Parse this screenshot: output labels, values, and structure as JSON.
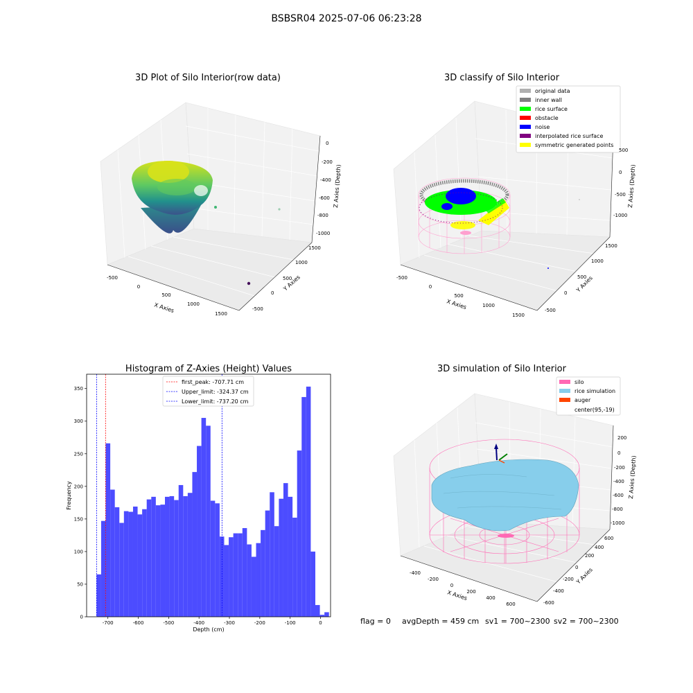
{
  "figure": {
    "title": "BSBSR04 2025-07-06 06:23:28"
  },
  "panels": {
    "raw": {
      "title": "3D Plot of Silo Interior(row data)",
      "xlabel": "X Axies",
      "ylabel": "Y Axies",
      "zlabel": "Z Axies (Depth)",
      "xticks": [
        "-500",
        "0",
        "500",
        "1000",
        "1500"
      ],
      "yticks": [
        "-500",
        "0",
        "500",
        "1000",
        "1500"
      ],
      "zticks": [
        "0",
        "-200",
        "-400",
        "-600",
        "-800",
        "-1000"
      ]
    },
    "classify": {
      "title": "3D classify of Silo Interior",
      "xlabel": "X Axies",
      "ylabel": "Y Axies",
      "zlabel": "Z Axies (Depth)",
      "xticks": [
        "-500",
        "0",
        "500",
        "1000",
        "1500"
      ],
      "yticks": [
        "-500",
        "0",
        "500",
        "1000",
        "1500"
      ],
      "zticks": [
        "500",
        "0",
        "-500",
        "-1000"
      ],
      "legend": [
        {
          "label": "original data",
          "color": "#b0b0b0"
        },
        {
          "label": "inner wall",
          "color": "#808080"
        },
        {
          "label": "rice surface",
          "color": "#00ff00"
        },
        {
          "label": "obstacle",
          "color": "#ff0000"
        },
        {
          "label": "noise",
          "color": "#0000ff"
        },
        {
          "label": "interpolated rice surface",
          "color": "#800080"
        },
        {
          "label": "symmetric generated points",
          "color": "#ffff00"
        }
      ]
    },
    "simulation": {
      "title": "3D simulation of Silo Interior",
      "xlabel": "X Axies",
      "ylabel": "Y Axies",
      "zlabel": "Z Axies (Depth)",
      "xticks": [
        "-400",
        "-200",
        "0",
        "200",
        "400",
        "600"
      ],
      "yticks": [
        "-600",
        "-400",
        "-200",
        "0",
        "200",
        "400",
        "600"
      ],
      "zticks": [
        "200",
        "0",
        "-200",
        "-400",
        "-600",
        "-800",
        "-1000"
      ],
      "legend": [
        {
          "label": "silo",
          "color": "#ff69b4"
        },
        {
          "label": "rice simulation",
          "color": "#87ceeb"
        },
        {
          "label": "auger",
          "color": "#ff4500"
        },
        {
          "label": "center(95,-19)",
          "color": ""
        }
      ],
      "status": {
        "flag": "flag = 0",
        "avg_depth": "avgDepth = 459 cm",
        "sv1": "sv1 = 700~2300",
        "sv2": "sv2 = 700~2300"
      }
    }
  },
  "chart_data": {
    "type": "bar",
    "title": "Histogram of Z-Axies (Height) Values",
    "xlabel": "Depth (cm)",
    "ylabel": "Frequency",
    "bar_color": "#4c4cff",
    "bin_start": -737.2,
    "bin_width": 15.0,
    "values": [
      65,
      147,
      266,
      195,
      168,
      144,
      162,
      161,
      169,
      157,
      165,
      180,
      184,
      171,
      172,
      184,
      185,
      179,
      202,
      185,
      190,
      222,
      262,
      305,
      293,
      178,
      174,
      123,
      110,
      122,
      128,
      128,
      136,
      111,
      92,
      113,
      133,
      163,
      191,
      139,
      181,
      205,
      184,
      152,
      255,
      337,
      353,
      100,
      18,
      3,
      7
    ],
    "xlim": [
      -770,
      33
    ],
    "ylim": [
      0,
      372
    ],
    "xticks": [
      -700,
      -600,
      -500,
      -400,
      -300,
      -200,
      -100,
      0
    ],
    "yticks": [
      0,
      50,
      100,
      150,
      200,
      250,
      300,
      350
    ],
    "vlines": [
      {
        "x": -707.71,
        "label": "first_peak: -707.71 cm",
        "color": "#ff0000"
      },
      {
        "x": -324.37,
        "label": "Upper_limit: -324.37 cm",
        "color": "#0000ff"
      },
      {
        "x": -737.2,
        "label": "Lower_limit: -737.20 cm",
        "color": "#0000ff"
      }
    ],
    "legend_position": "top-center"
  }
}
